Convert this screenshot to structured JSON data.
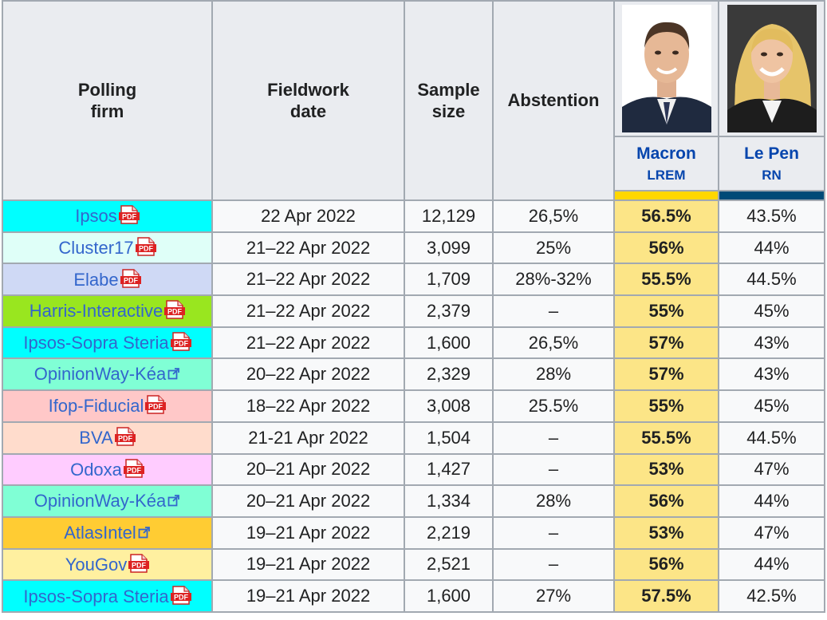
{
  "headers": {
    "firm": "Polling firm",
    "date": "Fieldwork date",
    "sample": "Sample size",
    "abstention": "Abstention"
  },
  "candidates": [
    {
      "name": "Macron",
      "party": "LREM",
      "color": "#ffd700",
      "header_bg": "#eaecf0"
    },
    {
      "name": "Le Pen",
      "party": "RN",
      "color": "#004a77",
      "header_bg": "#eaecf0"
    }
  ],
  "winner_bg": "#fce587",
  "rows": [
    {
      "firm": "Ipsos",
      "icon": "pdf-icon",
      "bg": "#00ffff",
      "date": "22 Apr 2022",
      "sample": "12,129",
      "abstention": "26,5%",
      "macron": "56.5%",
      "lepen": "43.5%"
    },
    {
      "firm": "Cluster17",
      "icon": "pdf-icon",
      "bg": "#dffff8",
      "date": "21–22 Apr 2022",
      "sample": "3,099",
      "abstention": "25%",
      "macron": "56%",
      "lepen": "44%"
    },
    {
      "firm": "Elabe",
      "icon": "pdf-icon",
      "bg": "#cfd9f5",
      "date": "21–22 Apr 2022",
      "sample": "1,709",
      "abstention": "28%-32%",
      "macron": "55.5%",
      "lepen": "44.5%"
    },
    {
      "firm": "Harris-Interactive",
      "icon": "pdf-icon",
      "bg": "#99e61f",
      "date": "21–22 Apr 2022",
      "sample": "2,379",
      "abstention": "–",
      "macron": "55%",
      "lepen": "45%"
    },
    {
      "firm": "Ipsos-Sopra Steria",
      "icon": "pdf-icon",
      "bg": "#00ffff",
      "date": "21–22 Apr 2022",
      "sample": "1,600",
      "abstention": "26,5%",
      "macron": "57%",
      "lepen": "43%"
    },
    {
      "firm": "OpinionWay-Kéa",
      "icon": "external-link-icon",
      "bg": "#80ffd5",
      "date": "20–22 Apr 2022",
      "sample": "2,329",
      "abstention": "28%",
      "macron": "57%",
      "lepen": "43%"
    },
    {
      "firm": "Ifop-Fiducial",
      "icon": "pdf-icon",
      "bg": "#ffc8c8",
      "date": "18–22 Apr 2022",
      "sample": "3,008",
      "abstention": "25.5%",
      "macron": "55%",
      "lepen": "45%"
    },
    {
      "firm": "BVA",
      "icon": "pdf-icon",
      "bg": "#ffdccc",
      "date": "21-21 Apr 2022",
      "sample": "1,504",
      "abstention": "–",
      "macron": "55.5%",
      "lepen": "44.5%"
    },
    {
      "firm": "Odoxa",
      "icon": "pdf-icon",
      "bg": "#ffccff",
      "date": "20–21 Apr 2022",
      "sample": "1,427",
      "abstention": "–",
      "macron": "53%",
      "lepen": "47%"
    },
    {
      "firm": "OpinionWay-Kéa",
      "icon": "external-link-icon",
      "bg": "#80ffd5",
      "date": "20–21 Apr 2022",
      "sample": "1,334",
      "abstention": "28%",
      "macron": "56%",
      "lepen": "44%"
    },
    {
      "firm": "AtlasIntel",
      "icon": "external-link-icon",
      "bg": "#ffcc33",
      "date": "19–21 Apr 2022",
      "sample": "2,219",
      "abstention": "–",
      "macron": "53%",
      "lepen": "47%"
    },
    {
      "firm": "YouGov",
      "icon": "pdf-icon",
      "bg": "#fff0a0",
      "date": "19–21 Apr 2022",
      "sample": "2,521",
      "abstention": "–",
      "macron": "56%",
      "lepen": "44%"
    },
    {
      "firm": "Ipsos-Sopra Steria",
      "icon": "pdf-icon",
      "bg": "#00ffff",
      "date": "19–21 Apr 2022",
      "sample": "1,600",
      "abstention": "27%",
      "macron": "57.5%",
      "lepen": "42.5%"
    }
  ]
}
